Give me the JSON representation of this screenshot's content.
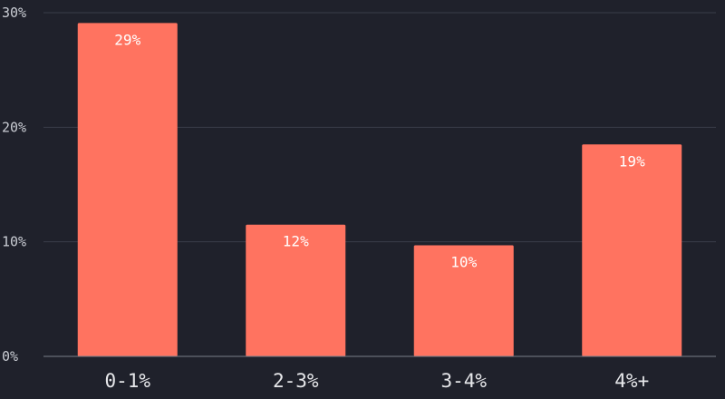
{
  "chart_data": {
    "type": "bar",
    "categories": [
      "0-1%",
      "2-3%",
      "3-4%",
      "4%+"
    ],
    "values": [
      29.1,
      11.5,
      9.7,
      18.5
    ],
    "data_labels": [
      "29%",
      "12%",
      "10%",
      "19%"
    ],
    "y_ticks": [
      "0%",
      "10%",
      "20%",
      "30%"
    ],
    "ylim": [
      0,
      30
    ],
    "title": "",
    "xlabel": "",
    "ylabel": "",
    "grid": true,
    "colors": {
      "bar": "#ff7360",
      "background": "#1f212b"
    }
  }
}
